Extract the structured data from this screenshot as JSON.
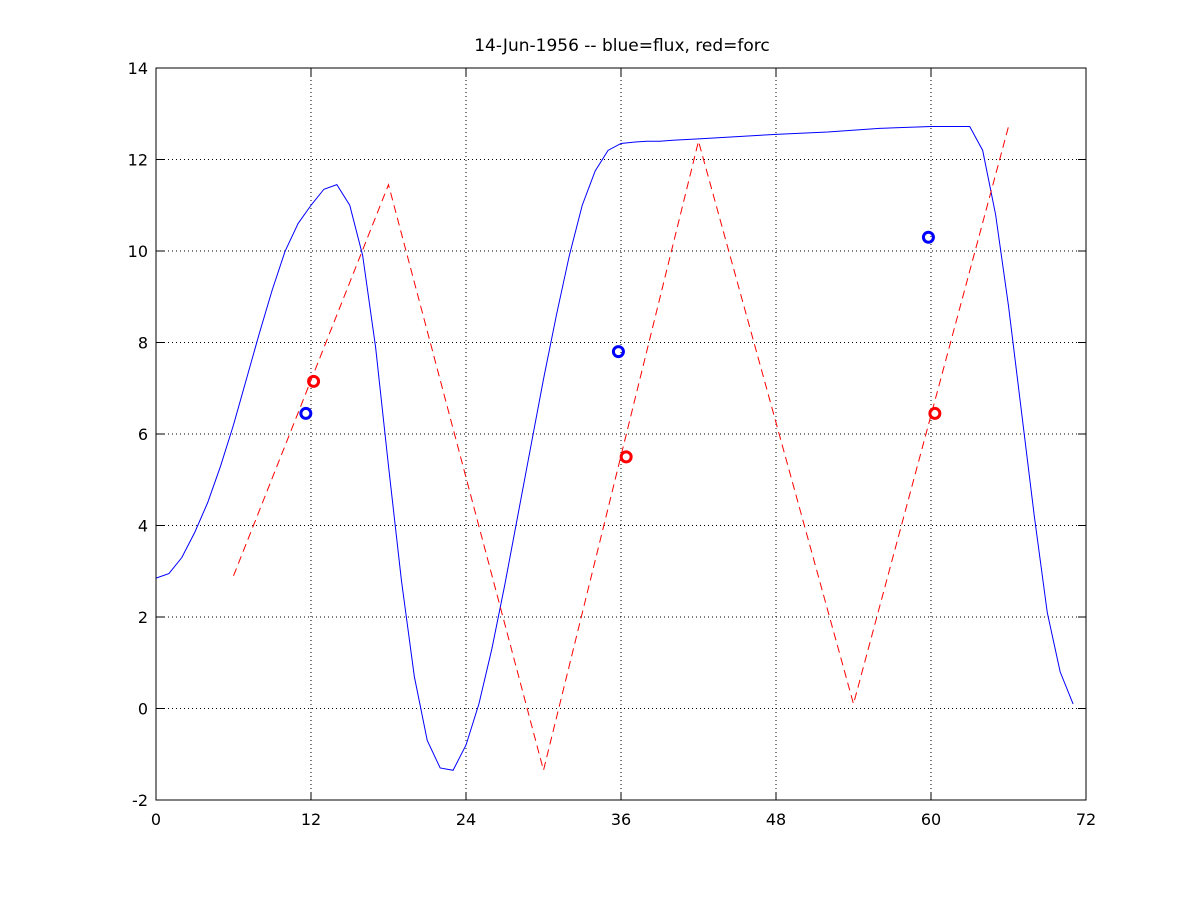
{
  "chart_data": {
    "type": "line",
    "title": "14-Jun-1956 -- blue=flux, red=forc",
    "xlabel": "",
    "ylabel": "",
    "xlim": [
      0,
      72
    ],
    "ylim": [
      -2,
      14
    ],
    "xticks": [
      0,
      12,
      24,
      36,
      48,
      60,
      72
    ],
    "yticks": [
      -2,
      0,
      2,
      4,
      6,
      8,
      10,
      12,
      14
    ],
    "grid": true,
    "series": [
      {
        "color": "#0000ff",
        "style": "solid",
        "x": [
          0,
          1,
          2,
          3,
          4,
          5,
          6,
          7,
          8,
          9,
          10,
          11,
          12,
          13,
          14,
          15,
          16,
          17,
          18,
          19,
          20,
          21,
          22,
          23,
          24,
          25,
          26,
          27,
          28,
          29,
          30,
          31,
          32,
          33,
          34,
          35,
          36,
          37,
          38,
          39,
          40,
          42,
          45,
          48,
          52,
          56,
          60,
          63,
          64,
          65,
          66,
          67,
          68,
          69,
          70,
          71
        ],
        "values": [
          2.85,
          2.95,
          3.3,
          3.85,
          4.5,
          5.3,
          6.2,
          7.2,
          8.2,
          9.15,
          10.0,
          10.6,
          11.0,
          11.35,
          11.45,
          11.0,
          9.9,
          7.9,
          5.3,
          2.8,
          0.7,
          -0.7,
          -1.3,
          -1.35,
          -0.8,
          0.1,
          1.3,
          2.7,
          4.2,
          5.7,
          7.2,
          8.6,
          9.9,
          11.0,
          11.75,
          12.2,
          12.35,
          12.38,
          12.4,
          12.4,
          12.42,
          12.45,
          12.5,
          12.55,
          12.6,
          12.68,
          12.72,
          12.72,
          12.2,
          10.8,
          8.8,
          6.5,
          4.2,
          2.1,
          0.8,
          0.1
        ]
      },
      {
        "color": "#ff0000",
        "style": "dashed",
        "x": [
          6,
          18,
          30,
          42,
          54,
          66
        ],
        "values": [
          2.9,
          11.45,
          -1.35,
          12.4,
          0.1,
          12.72
        ]
      }
    ],
    "markers": [
      {
        "color": "#0000ff",
        "x": 11.6,
        "y": 6.45
      },
      {
        "color": "#0000ff",
        "x": 35.8,
        "y": 7.8
      },
      {
        "color": "#0000ff",
        "x": 59.8,
        "y": 10.3
      },
      {
        "color": "#ff0000",
        "x": 12.2,
        "y": 7.15
      },
      {
        "color": "#ff0000",
        "x": 36.4,
        "y": 5.5
      },
      {
        "color": "#ff0000",
        "x": 60.3,
        "y": 6.45
      }
    ]
  }
}
